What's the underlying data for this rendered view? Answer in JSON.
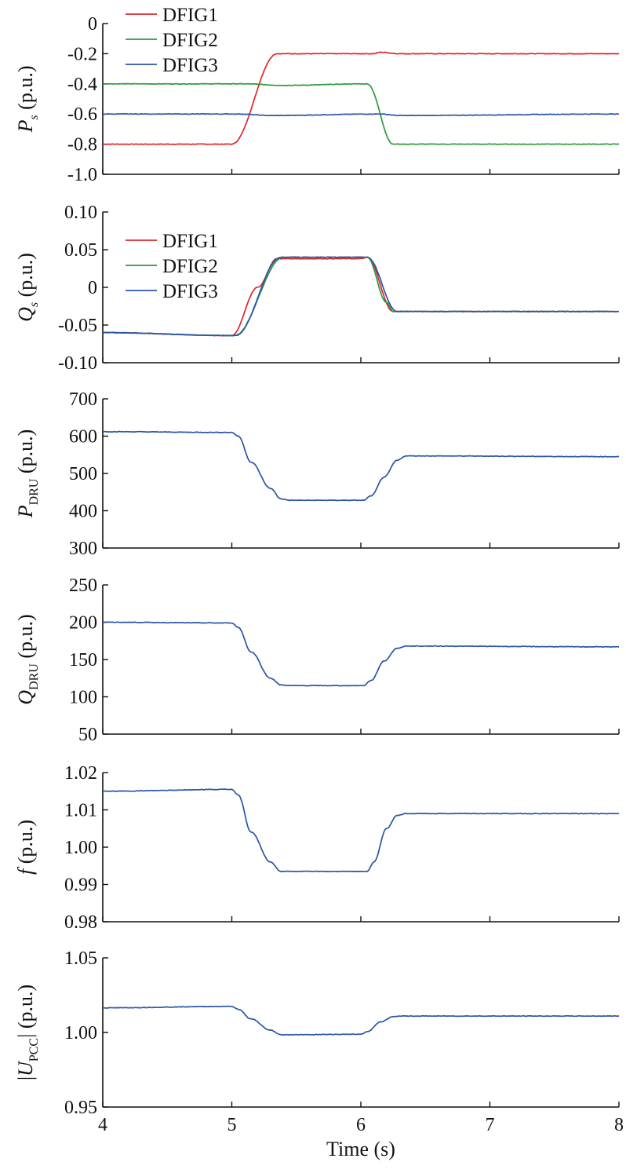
{
  "chart_data": [
    {
      "type": "line",
      "ylabel": {
        "main": "P",
        "sub": "s",
        "unit": " (p.u.)"
      },
      "ylim": [
        -1.0,
        0.0
      ],
      "yticks": [
        -1.0,
        -0.8,
        -0.6,
        -0.4,
        -0.2,
        0
      ],
      "ytick_labels": [
        "-1.0",
        "-0.8",
        "-0.6",
        "-0.4",
        "-0.2",
        "0"
      ],
      "xlim": [
        4,
        8
      ],
      "xticks": [
        4,
        5,
        6,
        7,
        8
      ],
      "legend": "top-left",
      "series": [
        {
          "name": "DFIG1",
          "color": "#e0262a",
          "x": [
            4.0,
            5.0,
            5.35,
            6.1,
            6.15,
            6.3,
            8.0
          ],
          "y": [
            -0.8,
            -0.8,
            -0.2,
            -0.2,
            -0.19,
            -0.2,
            -0.2
          ]
        },
        {
          "name": "DFIG2",
          "color": "#2e9a3e",
          "x": [
            4.0,
            5.1,
            5.4,
            6.05,
            6.25,
            8.0
          ],
          "y": [
            -0.4,
            -0.4,
            -0.41,
            -0.4,
            -0.8,
            -0.8
          ]
        },
        {
          "name": "DFIG3",
          "color": "#2b55a8",
          "x": [
            4.0,
            5.05,
            5.3,
            6.15,
            6.3,
            8.0
          ],
          "y": [
            -0.6,
            -0.6,
            -0.61,
            -0.6,
            -0.61,
            -0.6
          ]
        }
      ]
    },
    {
      "type": "line",
      "ylabel": {
        "main": "Q",
        "sub": "s",
        "unit": " (p.u.)"
      },
      "ylim": [
        -0.1,
        0.1
      ],
      "yticks": [
        -0.1,
        -0.05,
        0,
        0.05,
        0.1
      ],
      "ytick_labels": [
        "-0.10",
        "-0.05",
        "0",
        "0.05",
        "0.10"
      ],
      "xlim": [
        4,
        8
      ],
      "xticks": [
        4,
        5,
        6,
        7,
        8
      ],
      "legend": "upper-left",
      "series": [
        {
          "name": "DFIG1",
          "color": "#e0262a",
          "x": [
            4.0,
            5.0,
            5.2,
            5.35,
            6.0,
            6.05,
            6.25,
            8.0
          ],
          "y": [
            -0.06,
            -0.064,
            0.0,
            0.038,
            0.038,
            0.04,
            -0.032,
            -0.032
          ]
        },
        {
          "name": "DFIG2",
          "color": "#2e9a3e",
          "x": [
            4.0,
            5.02,
            5.4,
            6.05,
            6.2,
            6.25,
            8.0
          ],
          "y": [
            -0.06,
            -0.064,
            0.04,
            0.04,
            -0.02,
            -0.032,
            -0.032
          ]
        },
        {
          "name": "DFIG3",
          "color": "#2b55a8",
          "x": [
            4.0,
            5.03,
            5.38,
            6.05,
            6.28,
            8.0
          ],
          "y": [
            -0.06,
            -0.064,
            0.04,
            0.04,
            -0.032,
            -0.032
          ]
        }
      ]
    },
    {
      "type": "line",
      "ylabel": {
        "main": "P",
        "sub": "DRU",
        "unit": " (p.u.)"
      },
      "ylim": [
        300,
        700
      ],
      "yticks": [
        300,
        400,
        500,
        600,
        700
      ],
      "ytick_labels": [
        "300",
        "400",
        "500",
        "600",
        "700"
      ],
      "xlim": [
        4,
        8
      ],
      "xticks": [
        4,
        5,
        6,
        7,
        8
      ],
      "series": [
        {
          "color": "#2b55a8",
          "x": [
            4.0,
            5.0,
            5.05,
            5.15,
            5.3,
            5.38,
            5.45,
            6.02,
            6.08,
            6.18,
            6.28,
            6.35,
            8.0
          ],
          "y": [
            612,
            610,
            600,
            530,
            460,
            432,
            428,
            428,
            440,
            490,
            535,
            547,
            545
          ]
        }
      ]
    },
    {
      "type": "line",
      "ylabel": {
        "main": "Q",
        "sub": "DRU",
        "unit": " (p.u.)"
      },
      "ylim": [
        50,
        250
      ],
      "yticks": [
        50,
        100,
        150,
        200,
        250
      ],
      "ytick_labels": [
        "50",
        "100",
        "150",
        "200",
        "250"
      ],
      "xlim": [
        4,
        8
      ],
      "xticks": [
        4,
        5,
        6,
        7,
        8
      ],
      "series": [
        {
          "color": "#2b55a8",
          "x": [
            4.0,
            5.0,
            5.05,
            5.15,
            5.3,
            5.38,
            5.45,
            6.02,
            6.08,
            6.18,
            6.28,
            6.35,
            8.0
          ],
          "y": [
            200,
            199,
            193,
            160,
            125,
            116,
            115,
            115,
            122,
            148,
            165,
            168,
            167
          ]
        }
      ]
    },
    {
      "type": "line",
      "ylabel": {
        "main": "f",
        "sub": "",
        "unit": " (p.u.)"
      },
      "ylim": [
        0.98,
        1.02
      ],
      "yticks": [
        0.98,
        0.99,
        1.0,
        1.01,
        1.02
      ],
      "ytick_labels": [
        "0.98",
        "0.99",
        "1.00",
        "1.01",
        "1.02"
      ],
      "xlim": [
        4,
        8
      ],
      "xticks": [
        4,
        5,
        6,
        7,
        8
      ],
      "series": [
        {
          "color": "#2b55a8",
          "x": [
            4.0,
            5.0,
            5.05,
            5.15,
            5.3,
            5.38,
            5.45,
            6.05,
            6.1,
            6.2,
            6.28,
            6.35,
            8.0
          ],
          "y": [
            1.015,
            1.0155,
            1.014,
            1.004,
            0.996,
            0.9935,
            0.9935,
            0.9935,
            0.996,
            1.005,
            1.0085,
            1.009,
            1.009
          ]
        }
      ]
    },
    {
      "type": "line",
      "ylabel": {
        "main": "U",
        "sub": "PCC",
        "unit": " (p.u.)",
        "abs": true
      },
      "ylim": [
        0.95,
        1.05
      ],
      "yticks": [
        0.95,
        1.0,
        1.05
      ],
      "ytick_labels": [
        "0.95",
        "1.00",
        "1.05"
      ],
      "xlim": [
        4,
        8
      ],
      "xticks": [
        4,
        5,
        6,
        7,
        8
      ],
      "xtick_labels": [
        "4",
        "5",
        "6",
        "7",
        "8"
      ],
      "xlabel": "Time (s)",
      "series": [
        {
          "color": "#2b55a8",
          "x": [
            4.0,
            5.0,
            5.05,
            5.15,
            5.3,
            5.38,
            5.45,
            6.0,
            6.05,
            6.15,
            6.25,
            6.3,
            8.0
          ],
          "y": [
            1.0165,
            1.0175,
            1.0155,
            1.009,
            1.0015,
            0.9985,
            0.9985,
            0.9988,
            1.0005,
            1.007,
            1.0105,
            1.011,
            1.011
          ]
        }
      ]
    }
  ]
}
